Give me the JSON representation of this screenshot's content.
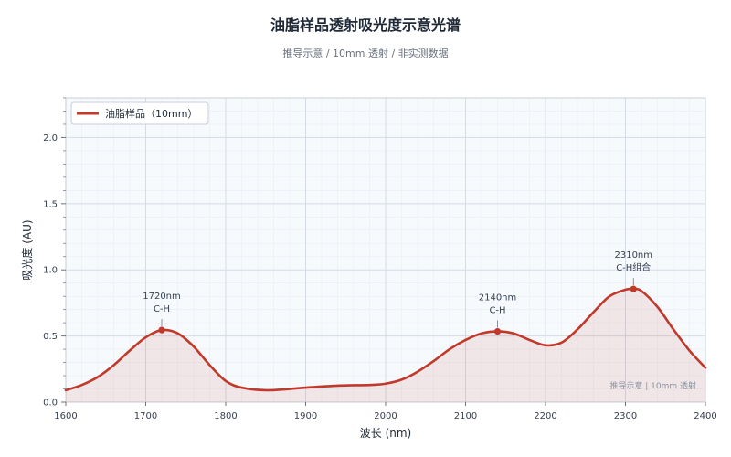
{
  "chart_data": {
    "type": "line",
    "title": "油脂样品透射吸光度示意光谱",
    "subtitle": "推导示意 / 10mm 透射 / 非实测数据",
    "xlabel": "波长 (nm)",
    "ylabel": "吸光度 (AU)",
    "xlim": [
      1600,
      2400
    ],
    "ylim": [
      0,
      2.3
    ],
    "x_ticks": [
      "1600",
      "1700",
      "1800",
      "1900",
      "2000",
      "2100",
      "2200",
      "2300",
      "2400"
    ],
    "y_ticks": [
      "0.0",
      "0.5",
      "1.0",
      "1.5",
      "2.0"
    ],
    "grid": true,
    "legend_position": "top-left",
    "series": [
      {
        "name": "油脂样品（10mm）",
        "color": "#c0392b",
        "x": [
          1600,
          1620,
          1640,
          1660,
          1680,
          1700,
          1720,
          1740,
          1760,
          1780,
          1800,
          1820,
          1850,
          1880,
          1900,
          1940,
          1980,
          2000,
          2020,
          2040,
          2060,
          2080,
          2100,
          2120,
          2140,
          2160,
          2180,
          2200,
          2220,
          2240,
          2260,
          2280,
          2300,
          2310,
          2320,
          2340,
          2360,
          2380,
          2400
        ],
        "y": [
          0.09,
          0.13,
          0.19,
          0.28,
          0.39,
          0.49,
          0.545,
          0.52,
          0.42,
          0.28,
          0.16,
          0.11,
          0.09,
          0.1,
          0.11,
          0.125,
          0.13,
          0.14,
          0.17,
          0.23,
          0.31,
          0.4,
          0.47,
          0.52,
          0.535,
          0.52,
          0.47,
          0.43,
          0.45,
          0.55,
          0.68,
          0.8,
          0.85,
          0.855,
          0.84,
          0.72,
          0.55,
          0.39,
          0.26
        ]
      }
    ],
    "markers": [
      {
        "x": 1720,
        "y": 0.545,
        "label_line1": "1720nm",
        "label_line2": "C-H"
      },
      {
        "x": 2140,
        "y": 0.535,
        "label_line1": "2140nm",
        "label_line2": "C-H"
      },
      {
        "x": 2310,
        "y": 0.855,
        "label_line1": "2310nm",
        "label_line2": "C-H组合"
      }
    ],
    "watermark": "推导示意 | 10mm 透射"
  }
}
